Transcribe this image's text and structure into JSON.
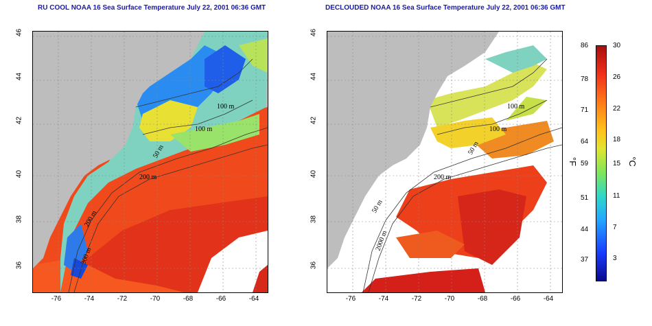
{
  "title_left": "RU COOL NOAA 16 Sea Surface Temperature July 22, 2001 06:36 GMT",
  "title_right": "DECLOUDED NOAA 16 Sea Surface Temperature July 22, 2001 06:36 GMT",
  "lat_ticks": [
    "46",
    "44",
    "42",
    "40",
    "38",
    "36"
  ],
  "lon_ticks": [
    "-76",
    "-74",
    "-72",
    "-70",
    "-68",
    "-66",
    "-64"
  ],
  "contour_labels_left": [
    "100 m",
    "100 m",
    "50 m",
    "200 m",
    "200 m",
    "300 m"
  ],
  "contour_labels_right": [
    "100 m",
    "100 m",
    "50 m",
    "200 m",
    "50 m",
    "2000 m"
  ],
  "colorbar": {
    "fahrenheit": [
      "86",
      "78",
      "71",
      "64",
      "59",
      "51",
      "44",
      "37"
    ],
    "celsius": [
      "30",
      "26",
      "22",
      "18",
      "15",
      "11",
      "7",
      "3"
    ],
    "unit_f": "°F",
    "unit_c": "°C"
  }
}
